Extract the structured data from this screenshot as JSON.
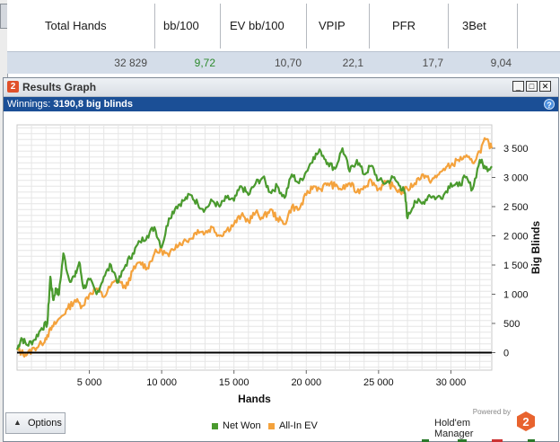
{
  "stats": {
    "headers": [
      "Total Hands",
      "bb/100",
      "EV bb/100",
      "VPIP",
      "PFR",
      "3Bet"
    ],
    "values": [
      "32 829",
      "9,72",
      "10,70",
      "22,1",
      "17,7",
      "9,04"
    ]
  },
  "window": {
    "title": "Results Graph",
    "logo_digit": "2",
    "winnings_label": "Winnings:",
    "winnings_value": "3190,8 big blinds",
    "help_glyph": "?",
    "controls": {
      "minimize": "_",
      "maximize": "□",
      "close": "✕"
    }
  },
  "options_button": {
    "label": "Options",
    "arrow": "▲"
  },
  "branding": {
    "powered_by": "Powered by",
    "name": "Hold'em Manager",
    "logo_digit": "2"
  },
  "colors": {
    "net_won": "#4a9a2e",
    "all_in_ev": "#f4a23c",
    "title_bar": "#1b4f96",
    "positive_stat": "#2d8a2d"
  },
  "chart_data": {
    "type": "line",
    "xlabel": "Hands",
    "ylabel": "Big Blinds",
    "xlim": [
      0,
      32829
    ],
    "ylim": [
      -300,
      3900
    ],
    "x_ticks": [
      5000,
      10000,
      15000,
      20000,
      25000,
      30000
    ],
    "x_tick_labels": [
      "5 000",
      "10 000",
      "15 000",
      "20 000",
      "25 000",
      "30 000"
    ],
    "y_ticks": [
      0,
      500,
      1000,
      1500,
      2000,
      2500,
      3000,
      3500
    ],
    "y_tick_labels": [
      "0",
      "500",
      "1 000",
      "1 500",
      "2 000",
      "2 500",
      "3 000",
      "3 500"
    ],
    "grid": true,
    "legend_position": "bottom",
    "series": [
      {
        "name": "Net Won",
        "color": "#4a9a2e",
        "x": [
          0,
          300,
          700,
          1200,
          1700,
          2100,
          2300,
          2500,
          2700,
          2900,
          3200,
          3600,
          4000,
          4300,
          4600,
          5000,
          5500,
          6000,
          6500,
          7000,
          7500,
          8000,
          8500,
          9000,
          9500,
          10000,
          10500,
          11000,
          11500,
          12000,
          12500,
          13000,
          13500,
          14000,
          14500,
          15000,
          15500,
          16000,
          16500,
          17000,
          17500,
          18000,
          18500,
          19000,
          19500,
          20000,
          20500,
          21000,
          21500,
          22000,
          22500,
          23000,
          23500,
          24000,
          24500,
          25000,
          25500,
          26000,
          26500,
          26800,
          27000,
          27500,
          28000,
          28500,
          29000,
          29500,
          30000,
          30500,
          31000,
          31500,
          32000,
          32400,
          32829
        ],
        "y": [
          50,
          250,
          130,
          220,
          420,
          500,
          1300,
          900,
          1100,
          1000,
          1700,
          1250,
          1300,
          1550,
          1100,
          1250,
          1000,
          1300,
          1500,
          1200,
          1500,
          1700,
          1900,
          2000,
          2150,
          1800,
          2300,
          2500,
          2600,
          2700,
          2550,
          2450,
          2600,
          2500,
          2650,
          2600,
          2850,
          2700,
          2900,
          3000,
          2750,
          2850,
          2650,
          3050,
          2900,
          3100,
          3350,
          3450,
          3250,
          3150,
          3500,
          3100,
          3300,
          3050,
          3200,
          2950,
          2900,
          3000,
          2850,
          2750,
          2300,
          2600,
          2550,
          2700,
          2650,
          2700,
          2900,
          2850,
          3000,
          2800,
          3300,
          3150,
          3190.8
        ]
      },
      {
        "name": "All-In EV",
        "color": "#f4a23c",
        "x": [
          0,
          300,
          700,
          1200,
          1700,
          2100,
          2500,
          3000,
          3500,
          4000,
          4500,
          5000,
          5500,
          6000,
          6500,
          7000,
          7500,
          8000,
          8500,
          9000,
          9500,
          10000,
          10500,
          11000,
          11500,
          12000,
          12500,
          13000,
          13500,
          14000,
          14500,
          15000,
          15500,
          16000,
          16500,
          17000,
          17500,
          18000,
          18500,
          19000,
          19500,
          20000,
          20500,
          21000,
          21500,
          22000,
          22500,
          23000,
          23500,
          24000,
          24500,
          25000,
          25500,
          26000,
          26500,
          27000,
          27500,
          28000,
          28500,
          29000,
          29500,
          30000,
          30500,
          31000,
          31500,
          32000,
          32400,
          32829
        ],
        "y": [
          50,
          0,
          -30,
          80,
          150,
          300,
          450,
          600,
          750,
          900,
          800,
          1000,
          1100,
          950,
          1150,
          1250,
          1100,
          1400,
          1550,
          1450,
          1700,
          1750,
          1650,
          1850,
          1900,
          1950,
          2100,
          2050,
          2150,
          2000,
          2100,
          2200,
          2350,
          2250,
          2400,
          2300,
          2450,
          2300,
          2200,
          2500,
          2450,
          2700,
          2850,
          2800,
          2900,
          2850,
          2800,
          2900,
          2750,
          2850,
          2950,
          2800,
          2900,
          2850,
          2750,
          2800,
          2900,
          3050,
          2950,
          3000,
          3150,
          3200,
          3300,
          3350,
          3250,
          3450,
          3650,
          3500
        ]
      }
    ]
  }
}
